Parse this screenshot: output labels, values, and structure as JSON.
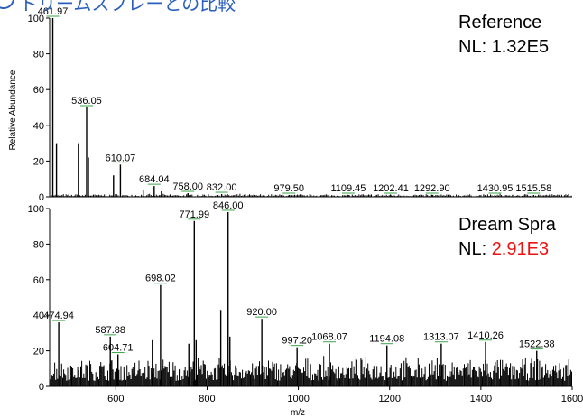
{
  "header": {
    "text": "ドリームスプレーとの比較"
  },
  "chart_data": [
    {
      "type": "line",
      "name": "Reference",
      "label_line1": "Reference",
      "nl_prefix": "NL: ",
      "nl_value": "1.32E5",
      "ylabel": "Relative Abundance",
      "xlim": [
        455,
        1600
      ],
      "ylim": [
        0,
        100
      ],
      "yticks": [
        "0",
        "20",
        "40",
        "60",
        "80",
        "100"
      ],
      "peaks": [
        {
          "x": 461.97,
          "y": 100,
          "label": "461.97"
        },
        {
          "x": 470.0,
          "y": 30
        },
        {
          "x": 518.0,
          "y": 30
        },
        {
          "x": 536.05,
          "y": 50,
          "label": "536.05"
        },
        {
          "x": 540.0,
          "y": 22
        },
        {
          "x": 595.0,
          "y": 12
        },
        {
          "x": 610.07,
          "y": 18,
          "label": "610.07"
        },
        {
          "x": 660.0,
          "y": 4
        },
        {
          "x": 684.04,
          "y": 6,
          "label": "684.04"
        },
        {
          "x": 700.0,
          "y": 3
        },
        {
          "x": 758.0,
          "y": 2,
          "label": "758.00"
        },
        {
          "x": 832.0,
          "y": 1.5,
          "label": "832.00"
        },
        {
          "x": 979.5,
          "y": 1,
          "label": "979.50"
        },
        {
          "x": 1109.45,
          "y": 1,
          "label": "1109.45"
        },
        {
          "x": 1202.41,
          "y": 1,
          "label": "1202.41"
        },
        {
          "x": 1292.9,
          "y": 1,
          "label": "1292.90"
        },
        {
          "x": 1430.95,
          "y": 1,
          "label": "1430.95"
        },
        {
          "x": 1515.58,
          "y": 1,
          "label": "1515.58"
        }
      ],
      "noise": {
        "base": 0.5,
        "amp": 1.5,
        "step": 3
      }
    },
    {
      "type": "line",
      "name": "Dream Spray",
      "label_line1": "Dream Spra",
      "nl_prefix": "NL: ",
      "nl_value": "2.91E3",
      "xlabel": "m/z",
      "xlim": [
        455,
        1600
      ],
      "ylim": [
        0,
        100
      ],
      "xticks": [
        600,
        800,
        1000,
        1200,
        1400,
        1600
      ],
      "yticks": [
        "0",
        "20",
        "40",
        "60",
        "80",
        "100"
      ],
      "peaks": [
        {
          "x": 474.94,
          "y": 36,
          "label": "474.94"
        },
        {
          "x": 587.88,
          "y": 28,
          "label": "587.88"
        },
        {
          "x": 604.71,
          "y": 18,
          "label": "604.71"
        },
        {
          "x": 680.0,
          "y": 26
        },
        {
          "x": 698.02,
          "y": 57,
          "label": "698.02"
        },
        {
          "x": 760.0,
          "y": 24
        },
        {
          "x": 771.99,
          "y": 93,
          "label": "771.99"
        },
        {
          "x": 776.0,
          "y": 26
        },
        {
          "x": 830.0,
          "y": 43
        },
        {
          "x": 846.0,
          "y": 98,
          "label": "846.00"
        },
        {
          "x": 850.0,
          "y": 28
        },
        {
          "x": 920.0,
          "y": 38,
          "label": "920.00"
        },
        {
          "x": 997.2,
          "y": 22,
          "label": "997.20"
        },
        {
          "x": 1068.07,
          "y": 24,
          "label": "1068.07"
        },
        {
          "x": 1194.08,
          "y": 23,
          "label": "1194.08"
        },
        {
          "x": 1313.07,
          "y": 24,
          "label": "1313.07"
        },
        {
          "x": 1410.26,
          "y": 25,
          "label": "1410.26"
        },
        {
          "x": 1522.38,
          "y": 20,
          "label": "1522.38"
        }
      ],
      "noise": {
        "base": 8,
        "amp": 14,
        "step": 2.2
      }
    }
  ]
}
